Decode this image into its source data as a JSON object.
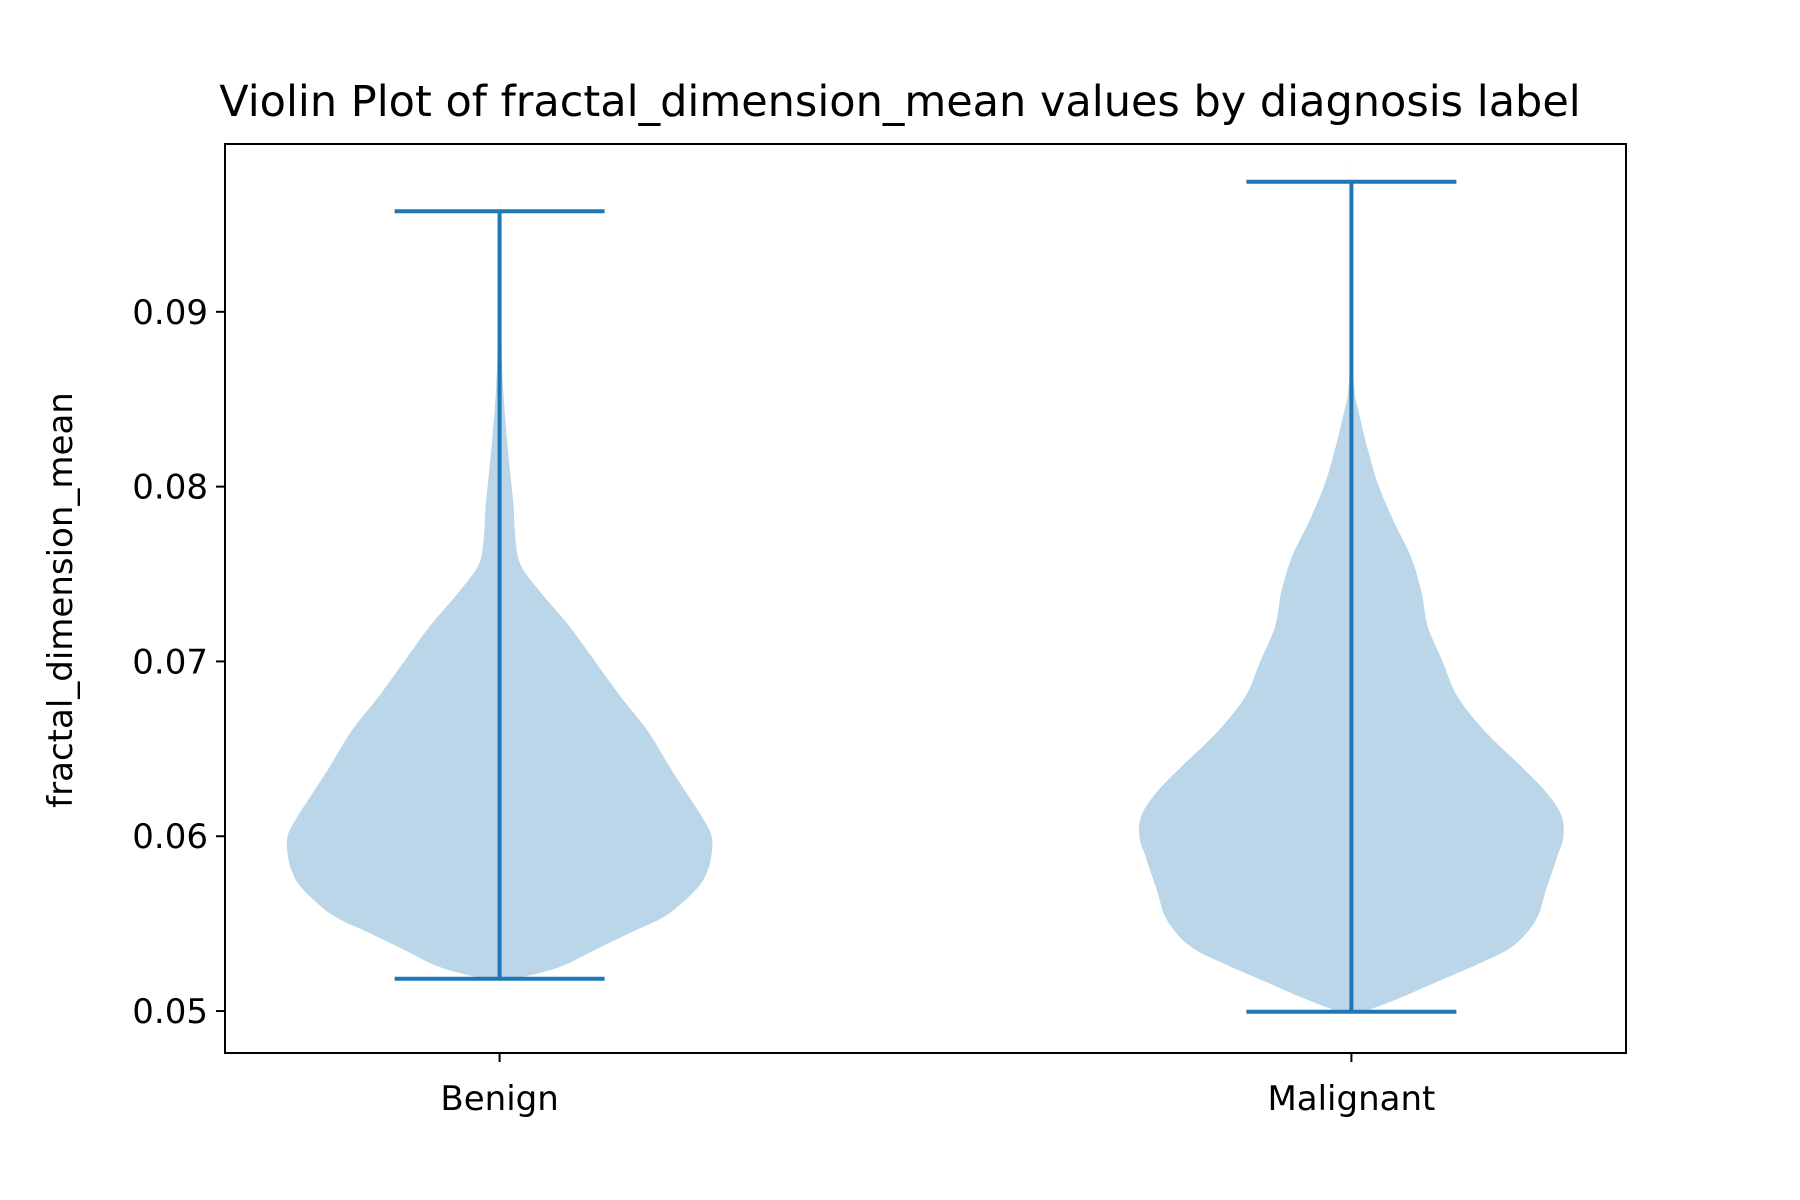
{
  "chart_data": {
    "type": "violin",
    "title": "Violin Plot of fractal_dimension_mean values by diagnosis label",
    "xlabel": "",
    "ylabel": "fractal_dimension_mean",
    "categories": [
      "Benign",
      "Malignant"
    ],
    "ylim": [
      0.0476,
      0.0996
    ],
    "yticks": [
      0.05,
      0.06,
      0.07,
      0.08,
      0.09
    ],
    "ytick_labels": [
      "0.05",
      "0.06",
      "0.07",
      "0.08",
      "0.09"
    ],
    "grid": false,
    "colors": {
      "body": "#1f77b4",
      "line": "#1f77b4",
      "axis": "#000000"
    },
    "series": [
      {
        "category": "Benign",
        "min": 0.05185,
        "max": 0.09575,
        "density": [
          [
            0.05185,
            0.08
          ],
          [
            0.0525,
            0.28
          ],
          [
            0.0535,
            0.45
          ],
          [
            0.0545,
            0.62
          ],
          [
            0.0555,
            0.79
          ],
          [
            0.057,
            0.93
          ],
          [
            0.058,
            0.98
          ],
          [
            0.059,
            1.0
          ],
          [
            0.06,
            1.0
          ],
          [
            0.061,
            0.96
          ],
          [
            0.0625,
            0.88
          ],
          [
            0.064,
            0.8
          ],
          [
            0.066,
            0.7
          ],
          [
            0.068,
            0.57
          ],
          [
            0.07,
            0.45
          ],
          [
            0.072,
            0.33
          ],
          [
            0.074,
            0.19
          ],
          [
            0.0755,
            0.1
          ],
          [
            0.077,
            0.075
          ],
          [
            0.079,
            0.065
          ],
          [
            0.081,
            0.048
          ],
          [
            0.083,
            0.033
          ],
          [
            0.085,
            0.02
          ],
          [
            0.087,
            0.012
          ],
          [
            0.09,
            0.006
          ],
          [
            0.09575,
            0.0
          ]
        ]
      },
      {
        "category": "Malignant",
        "min": 0.04996,
        "max": 0.09744,
        "density": [
          [
            0.04996,
            0.06
          ],
          [
            0.0507,
            0.22
          ],
          [
            0.0517,
            0.41
          ],
          [
            0.0527,
            0.6
          ],
          [
            0.0537,
            0.76
          ],
          [
            0.0552,
            0.87
          ],
          [
            0.057,
            0.92
          ],
          [
            0.0588,
            0.97
          ],
          [
            0.06,
            1.0
          ],
          [
            0.0612,
            0.99
          ],
          [
            0.0625,
            0.92
          ],
          [
            0.064,
            0.8
          ],
          [
            0.066,
            0.63
          ],
          [
            0.068,
            0.5
          ],
          [
            0.07,
            0.43
          ],
          [
            0.072,
            0.36
          ],
          [
            0.074,
            0.33
          ],
          [
            0.076,
            0.28
          ],
          [
            0.078,
            0.2
          ],
          [
            0.08,
            0.13
          ],
          [
            0.082,
            0.08
          ],
          [
            0.0845,
            0.03
          ],
          [
            0.0855,
            0.015
          ],
          [
            0.088,
            0.005
          ],
          [
            0.09744,
            0.0
          ]
        ]
      }
    ]
  }
}
